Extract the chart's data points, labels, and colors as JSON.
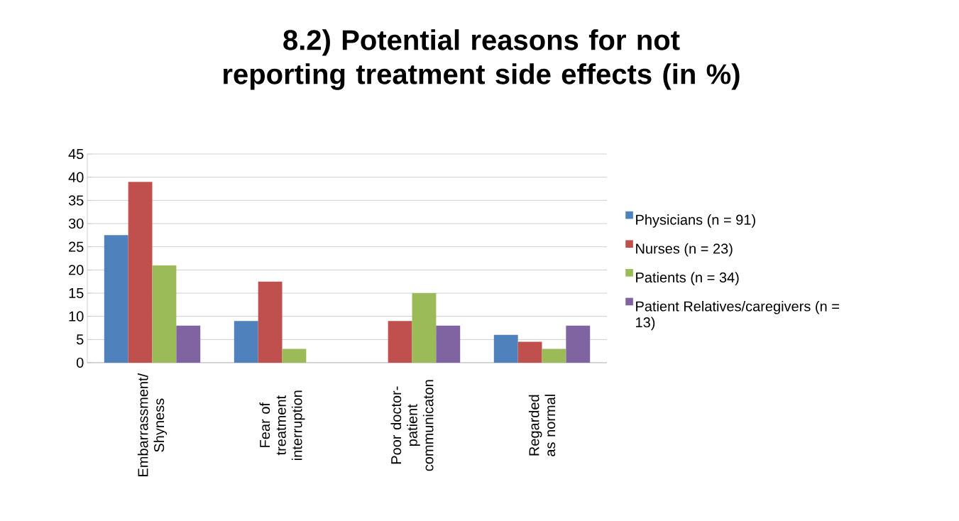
{
  "chart_data": {
    "type": "bar",
    "title": "8.2) Potential reasons for not reporting treatment side effects (in %)",
    "categories": [
      "Embarrassment/ Shyness",
      "Fear of treatment interruption",
      "Poor doctor- patient communicaton",
      "Regarded as normal"
    ],
    "series": [
      {
        "name": "Physicians (n = 91)",
        "color": "#4f81bd",
        "values": [
          27.5,
          9,
          0,
          6
        ]
      },
      {
        "name": "Nurses (n = 23)",
        "color": "#c0504d",
        "values": [
          39,
          17.5,
          9,
          4.5
        ]
      },
      {
        "name": "Patients (n = 34)",
        "color": "#9bbb59",
        "values": [
          21,
          3,
          15,
          3
        ]
      },
      {
        "name": "Patient Relatives/caregivers (n = 13)",
        "color": "#8064a2",
        "values": [
          8,
          0,
          8,
          8
        ]
      }
    ],
    "ylim": [
      0,
      45
    ],
    "yticks": [
      0,
      5,
      10,
      15,
      20,
      25,
      30,
      35,
      40,
      45
    ],
    "grid": "y",
    "legend": "right"
  }
}
